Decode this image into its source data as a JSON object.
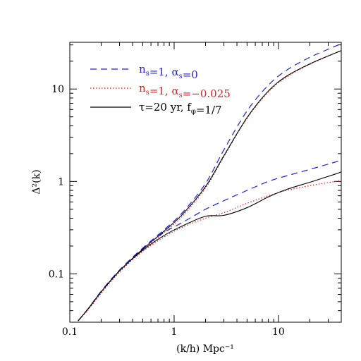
{
  "chart_data": {
    "type": "line",
    "xlabel": "(k/h) Mpc⁻¹",
    "ylabel": "Δ²(k)",
    "xscale": "log",
    "yscale": "log",
    "xlim": [
      0.1,
      40
    ],
    "ylim": [
      0.03,
      32
    ],
    "xticks": [
      {
        "value": 0.1,
        "label": "0.1"
      },
      {
        "value": 1,
        "label": "1"
      },
      {
        "value": 10,
        "label": "10"
      }
    ],
    "yticks": [
      {
        "value": 0.1,
        "label": "0.1"
      },
      {
        "value": 1,
        "label": "1"
      },
      {
        "value": 10,
        "label": "10"
      }
    ],
    "legend": {
      "placement": "top-left",
      "entries": [
        {
          "label": "n_s=1, α_s=0",
          "sym": "n",
          "sub": "s",
          "mid": "=1,  α",
          "sub2": "s",
          "tail": "=0",
          "color": "#2222dd",
          "dash": "dashed"
        },
        {
          "label": "n_s=1, α_s=−0.025",
          "sym": "n",
          "sub": "s",
          "mid": "=1,  α",
          "sub2": "s",
          "tail": "=−0.025",
          "color": "#dd2222",
          "dash": "dotted"
        },
        {
          "label": "τ=20 yr, f_φ=1/7",
          "sym": "τ=20 yr,  f",
          "sub": "φ",
          "mid": "=1/7",
          "sub2": "",
          "tail": "",
          "color": "#000000",
          "dash": "solid"
        }
      ]
    },
    "series": [
      {
        "style": "dashed",
        "color": "#2222dd",
        "x": [
          0.12,
          0.15,
          0.2,
          0.3,
          0.5,
          0.8,
          1.2,
          2,
          3,
          5,
          8,
          12,
          20,
          35,
          40
        ],
        "y": [
          0.031,
          0.042,
          0.065,
          0.11,
          0.19,
          0.3,
          0.46,
          0.95,
          2.2,
          5.8,
          11,
          16,
          22,
          29,
          31
        ]
      },
      {
        "style": "dotted",
        "color": "#dd2222",
        "x": [
          0.12,
          0.15,
          0.2,
          0.3,
          0.5,
          0.8,
          1.2,
          2,
          3,
          5,
          8,
          12,
          20,
          35,
          40
        ],
        "y": [
          0.031,
          0.041,
          0.062,
          0.105,
          0.18,
          0.28,
          0.42,
          0.85,
          1.85,
          4.8,
          9.3,
          13.5,
          18.5,
          24.5,
          26
        ]
      },
      {
        "style": "solid",
        "color": "#000000",
        "x": [
          0.12,
          0.15,
          0.2,
          0.3,
          0.5,
          0.8,
          1.2,
          2,
          3,
          5,
          8,
          12,
          20,
          35,
          40
        ],
        "y": [
          0.031,
          0.042,
          0.064,
          0.108,
          0.185,
          0.29,
          0.44,
          0.88,
          1.9,
          4.9,
          9.5,
          13.8,
          18.7,
          24.5,
          26
        ]
      },
      {
        "style": "dashed",
        "color": "#2222dd",
        "x": [
          0.12,
          0.15,
          0.2,
          0.3,
          0.5,
          0.8,
          1.2,
          2,
          3,
          5,
          8,
          12,
          20,
          35,
          40
        ],
        "y": [
          0.031,
          0.042,
          0.065,
          0.11,
          0.19,
          0.28,
          0.36,
          0.5,
          0.62,
          0.8,
          1.0,
          1.15,
          1.35,
          1.62,
          1.7
        ]
      },
      {
        "style": "dotted",
        "color": "#dd2222",
        "x": [
          0.12,
          0.15,
          0.2,
          0.3,
          0.5,
          0.8,
          1.2,
          2,
          3,
          5,
          8,
          12,
          20,
          35,
          40
        ],
        "y": [
          0.031,
          0.041,
          0.062,
          0.105,
          0.175,
          0.25,
          0.32,
          0.4,
          0.46,
          0.58,
          0.7,
          0.8,
          0.9,
          1.0,
          1.03
        ]
      },
      {
        "style": "solid",
        "color": "#000000",
        "x": [
          0.12,
          0.15,
          0.2,
          0.3,
          0.5,
          0.8,
          1.2,
          2,
          3,
          5,
          8,
          12,
          20,
          35,
          40
        ],
        "y": [
          0.031,
          0.042,
          0.064,
          0.108,
          0.18,
          0.26,
          0.33,
          0.42,
          0.43,
          0.52,
          0.68,
          0.82,
          0.98,
          1.2,
          1.27
        ]
      }
    ]
  }
}
